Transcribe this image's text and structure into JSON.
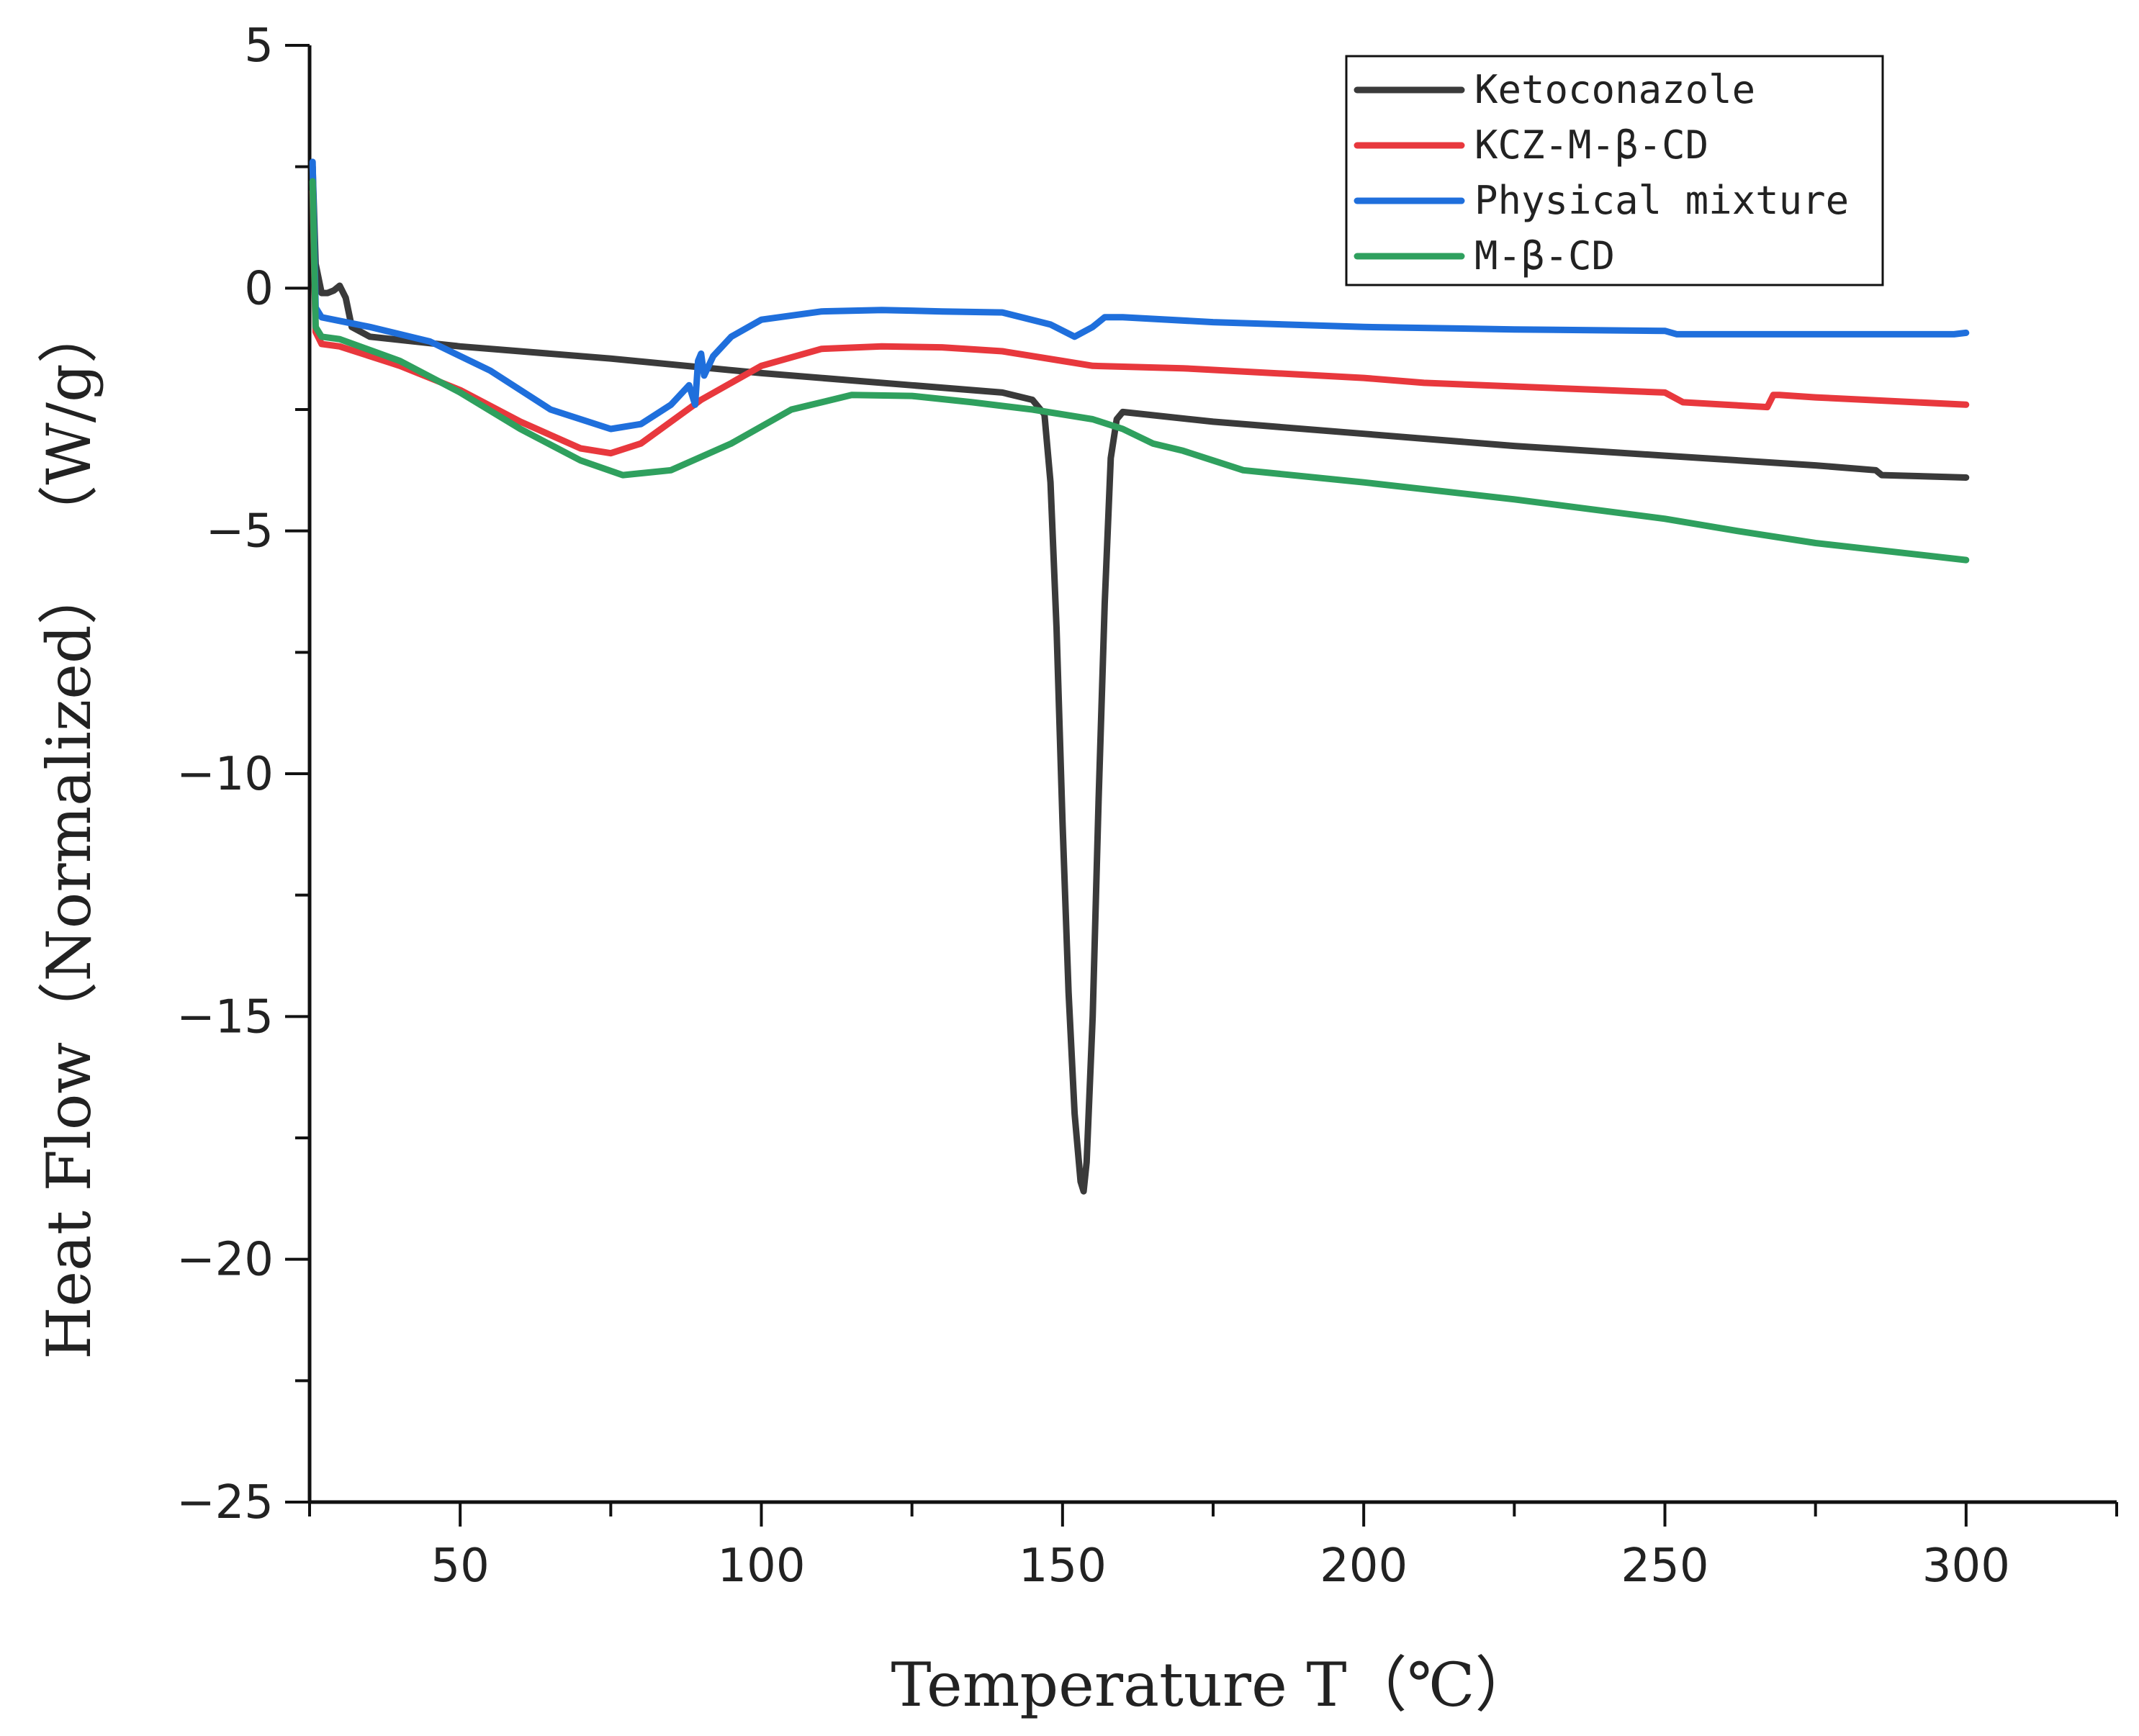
{
  "chart_data": {
    "type": "line",
    "title": "",
    "xlabel": "Temperature T（℃）",
    "ylabel": "Heat Flow（Normalized） （W/g）",
    "xlim": [
      25,
      325
    ],
    "ylim": [
      -25,
      5
    ],
    "xticks": [
      50,
      100,
      150,
      200,
      250,
      300
    ],
    "yticks": [
      5,
      0,
      -5,
      -10,
      -15,
      -20,
      -25
    ],
    "grid": false,
    "legend_position": "top-right",
    "series": [
      {
        "name": "Ketoconazole",
        "color": "#3a3a3a",
        "points": [
          [
            25.5,
            2.5
          ],
          [
            26,
            0.5
          ],
          [
            27,
            -0.1
          ],
          [
            28,
            -0.1
          ],
          [
            29,
            -0.05
          ],
          [
            30,
            0.05
          ],
          [
            31,
            -0.2
          ],
          [
            32,
            -0.8
          ],
          [
            35,
            -1.0
          ],
          [
            50,
            -1.2
          ],
          [
            75,
            -1.45
          ],
          [
            100,
            -1.75
          ],
          [
            125,
            -2.0
          ],
          [
            140,
            -2.15
          ],
          [
            145,
            -2.3
          ],
          [
            147,
            -2.6
          ],
          [
            148,
            -4.0
          ],
          [
            149,
            -7.0
          ],
          [
            150,
            -11.0
          ],
          [
            151,
            -14.5
          ],
          [
            152,
            -17.0
          ],
          [
            153,
            -18.4
          ],
          [
            153.5,
            -18.6
          ],
          [
            154,
            -18.0
          ],
          [
            155,
            -15.0
          ],
          [
            156,
            -10.5
          ],
          [
            157,
            -6.5
          ],
          [
            158,
            -3.5
          ],
          [
            159,
            -2.7
          ],
          [
            160,
            -2.55
          ],
          [
            175,
            -2.75
          ],
          [
            200,
            -3.0
          ],
          [
            210,
            -3.1
          ],
          [
            225,
            -3.25
          ],
          [
            250,
            -3.45
          ],
          [
            275,
            -3.65
          ],
          [
            285,
            -3.75
          ],
          [
            286,
            -3.85
          ],
          [
            300,
            -3.9
          ]
        ]
      },
      {
        "name": "KCZ-M-β-CD",
        "color": "#e8383d",
        "points": [
          [
            25.5,
            2.0
          ],
          [
            26,
            -0.9
          ],
          [
            27,
            -1.15
          ],
          [
            30,
            -1.2
          ],
          [
            40,
            -1.6
          ],
          [
            50,
            -2.1
          ],
          [
            60,
            -2.75
          ],
          [
            70,
            -3.3
          ],
          [
            75,
            -3.4
          ],
          [
            80,
            -3.2
          ],
          [
            90,
            -2.3
          ],
          [
            100,
            -1.6
          ],
          [
            110,
            -1.25
          ],
          [
            120,
            -1.2
          ],
          [
            130,
            -1.22
          ],
          [
            140,
            -1.3
          ],
          [
            150,
            -1.5
          ],
          [
            155,
            -1.6
          ],
          [
            170,
            -1.65
          ],
          [
            200,
            -1.85
          ],
          [
            210,
            -1.95
          ],
          [
            240,
            -2.1
          ],
          [
            250,
            -2.15
          ],
          [
            253,
            -2.35
          ],
          [
            260,
            -2.4
          ],
          [
            267,
            -2.45
          ],
          [
            268,
            -2.2
          ],
          [
            269,
            -2.2
          ],
          [
            275,
            -2.25
          ],
          [
            300,
            -2.4
          ]
        ]
      },
      {
        "name": "Physical mixture",
        "color": "#1f6fdc",
        "points": [
          [
            25.5,
            2.6
          ],
          [
            26,
            -0.4
          ],
          [
            27,
            -0.6
          ],
          [
            35,
            -0.8
          ],
          [
            45,
            -1.1
          ],
          [
            55,
            -1.7
          ],
          [
            65,
            -2.5
          ],
          [
            75,
            -2.9
          ],
          [
            80,
            -2.8
          ],
          [
            85,
            -2.4
          ],
          [
            88,
            -2.0
          ],
          [
            89,
            -2.4
          ],
          [
            89.5,
            -1.5
          ],
          [
            90,
            -1.35
          ],
          [
            90.5,
            -1.8
          ],
          [
            92,
            -1.4
          ],
          [
            95,
            -1.0
          ],
          [
            100,
            -0.65
          ],
          [
            110,
            -0.48
          ],
          [
            120,
            -0.45
          ],
          [
            130,
            -0.48
          ],
          [
            140,
            -0.5
          ],
          [
            148,
            -0.75
          ],
          [
            152,
            -1.0
          ],
          [
            155,
            -0.8
          ],
          [
            157,
            -0.6
          ],
          [
            160,
            -0.6
          ],
          [
            175,
            -0.7
          ],
          [
            200,
            -0.8
          ],
          [
            225,
            -0.85
          ],
          [
            250,
            -0.88
          ],
          [
            252,
            -0.95
          ],
          [
            275,
            -0.95
          ],
          [
            298,
            -0.95
          ],
          [
            300,
            -0.92
          ]
        ]
      },
      {
        "name": "M-β-CD",
        "color": "#2fa05e",
        "points": [
          [
            25.5,
            2.2
          ],
          [
            26,
            -0.8
          ],
          [
            27,
            -1.0
          ],
          [
            30,
            -1.05
          ],
          [
            40,
            -1.5
          ],
          [
            50,
            -2.15
          ],
          [
            60,
            -2.9
          ],
          [
            70,
            -3.55
          ],
          [
            77,
            -3.85
          ],
          [
            85,
            -3.75
          ],
          [
            95,
            -3.2
          ],
          [
            105,
            -2.5
          ],
          [
            115,
            -2.2
          ],
          [
            125,
            -2.22
          ],
          [
            135,
            -2.35
          ],
          [
            145,
            -2.5
          ],
          [
            155,
            -2.7
          ],
          [
            160,
            -2.9
          ],
          [
            165,
            -3.2
          ],
          [
            170,
            -3.35
          ],
          [
            175,
            -3.55
          ],
          [
            180,
            -3.75
          ],
          [
            200,
            -4.0
          ],
          [
            225,
            -4.35
          ],
          [
            250,
            -4.75
          ],
          [
            262,
            -5.0
          ],
          [
            275,
            -5.25
          ],
          [
            300,
            -5.6
          ]
        ]
      }
    ]
  }
}
